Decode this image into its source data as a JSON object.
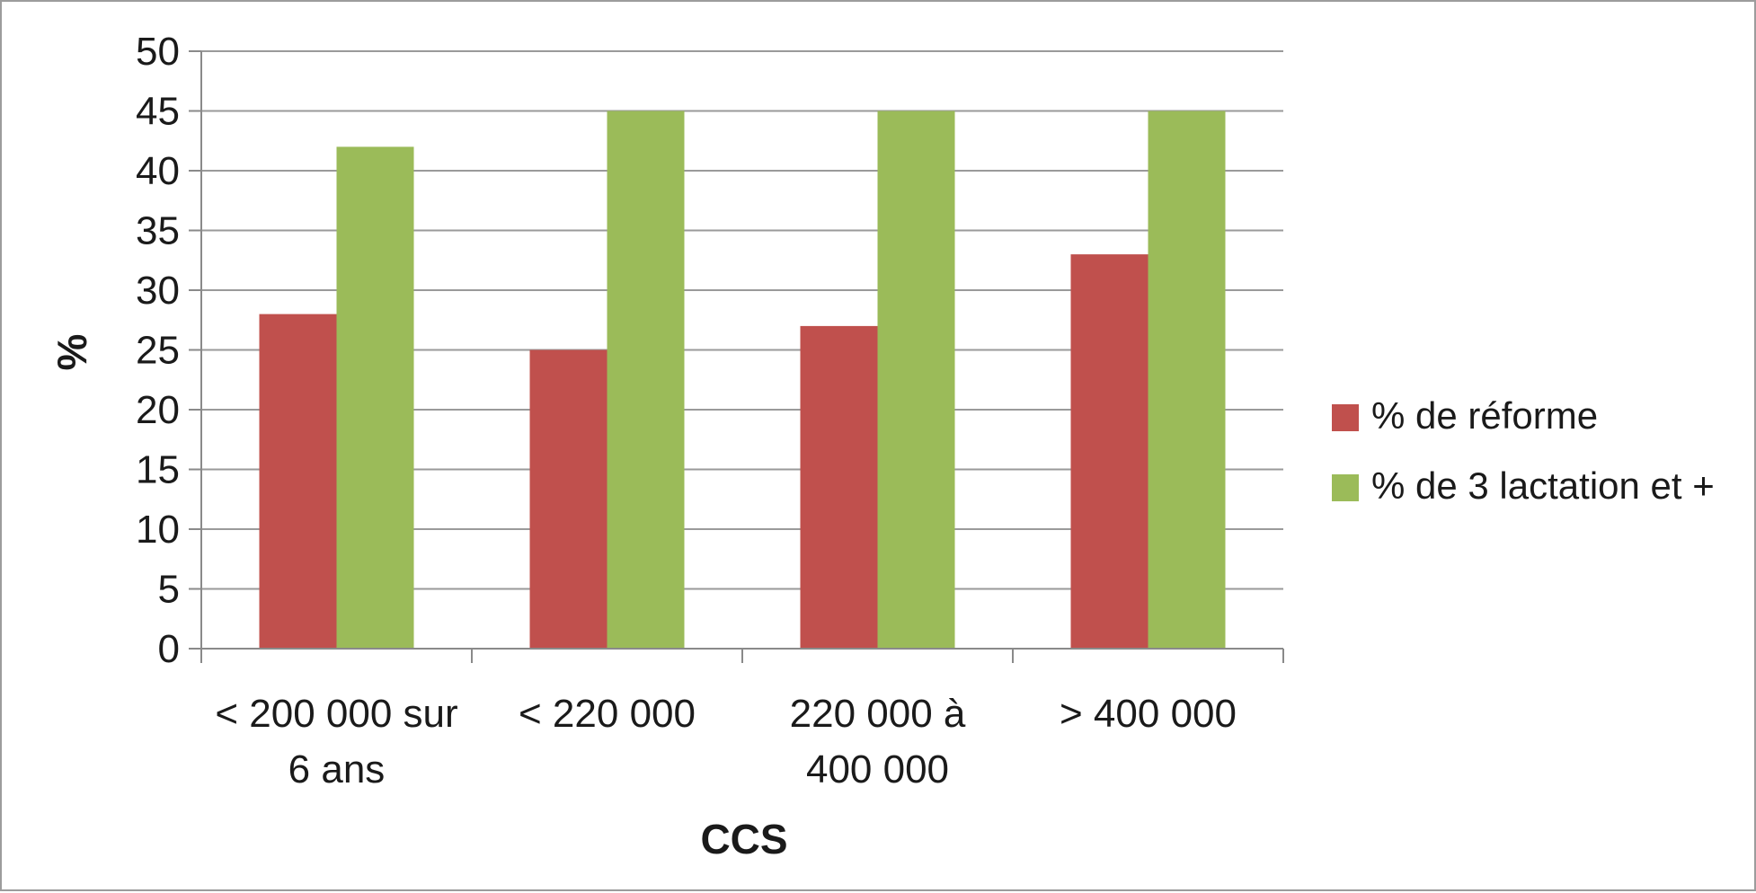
{
  "chart_data": {
    "type": "bar",
    "title": "",
    "xlabel": "CCS",
    "ylabel": "%",
    "ylim": [
      0,
      50
    ],
    "ytick_step": 5,
    "grid": true,
    "legend_position": "right",
    "categories": [
      [
        "< 200 000 sur",
        "6 ans"
      ],
      [
        "< 220 000"
      ],
      [
        "220 000 à",
        "400 000"
      ],
      [
        "> 400 000"
      ]
    ],
    "series": [
      {
        "name": "% de réforme",
        "color": "#c0504d",
        "values": [
          28,
          25,
          27,
          33
        ]
      },
      {
        "name": "% de 3 lactation et +",
        "color": "#9bbb59",
        "values": [
          42,
          45,
          45,
          45
        ]
      }
    ]
  }
}
